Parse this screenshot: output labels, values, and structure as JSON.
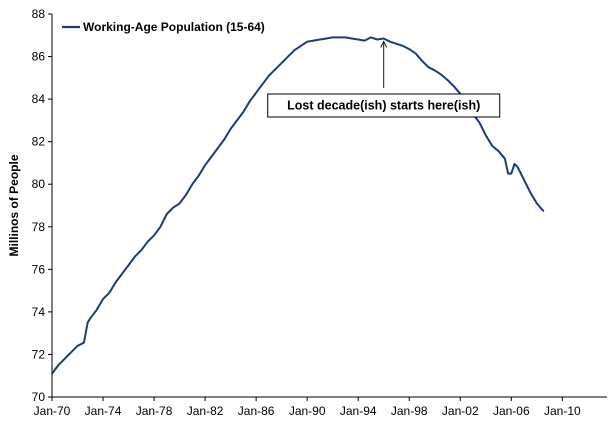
{
  "chart_data": {
    "type": "line",
    "title": "",
    "ylabel": "Millinos of People",
    "xlabel": "",
    "ylim": [
      70,
      88
    ],
    "yticks": [
      70,
      72,
      74,
      76,
      78,
      80,
      82,
      84,
      86,
      88
    ],
    "xlim": [
      1970.0,
      2013.5
    ],
    "xticks": [
      {
        "label": "Jan-70",
        "year": 1970
      },
      {
        "label": "Jan-74",
        "year": 1974
      },
      {
        "label": "Jan-78",
        "year": 1978
      },
      {
        "label": "Jan-82",
        "year": 1982
      },
      {
        "label": "Jan-86",
        "year": 1986
      },
      {
        "label": "Jan-90",
        "year": 1990
      },
      {
        "label": "Jan-94",
        "year": 1994
      },
      {
        "label": "Jan-98",
        "year": 1998
      },
      {
        "label": "Jan-02",
        "year": 2002
      },
      {
        "label": "Jan-06",
        "year": 2006
      },
      {
        "label": "Jan-10",
        "year": 2010
      }
    ],
    "grid": false,
    "legend_position": "top-left",
    "series": [
      {
        "name": "Working-Age Population (15-64)",
        "color": "#1f3a7a",
        "points": [
          [
            1970.0,
            71.1
          ],
          [
            1970.5,
            71.5
          ],
          [
            1971.0,
            71.8
          ],
          [
            1971.5,
            72.1
          ],
          [
            1972.0,
            72.4
          ],
          [
            1972.5,
            72.55
          ],
          [
            1972.8,
            73.5
          ],
          [
            1973.0,
            73.7
          ],
          [
            1973.5,
            74.1
          ],
          [
            1974.0,
            74.6
          ],
          [
            1974.5,
            74.9
          ],
          [
            1975.0,
            75.4
          ],
          [
            1975.5,
            75.8
          ],
          [
            1976.0,
            76.2
          ],
          [
            1976.5,
            76.6
          ],
          [
            1977.0,
            76.9
          ],
          [
            1977.5,
            77.3
          ],
          [
            1978.0,
            77.6
          ],
          [
            1978.5,
            78.0
          ],
          [
            1979.0,
            78.6
          ],
          [
            1979.5,
            78.9
          ],
          [
            1980.0,
            79.1
          ],
          [
            1980.5,
            79.5
          ],
          [
            1981.0,
            80.0
          ],
          [
            1981.5,
            80.4
          ],
          [
            1982.0,
            80.9
          ],
          [
            1982.5,
            81.3
          ],
          [
            1983.0,
            81.7
          ],
          [
            1983.5,
            82.1
          ],
          [
            1984.0,
            82.6
          ],
          [
            1984.5,
            83.0
          ],
          [
            1985.0,
            83.4
          ],
          [
            1985.5,
            83.9
          ],
          [
            1986.0,
            84.3
          ],
          [
            1986.5,
            84.7
          ],
          [
            1987.0,
            85.1
          ],
          [
            1987.5,
            85.4
          ],
          [
            1988.0,
            85.7
          ],
          [
            1988.5,
            86.0
          ],
          [
            1989.0,
            86.3
          ],
          [
            1989.5,
            86.5
          ],
          [
            1990.0,
            86.7
          ],
          [
            1990.5,
            86.75
          ],
          [
            1991.0,
            86.8
          ],
          [
            1991.5,
            86.85
          ],
          [
            1992.0,
            86.9
          ],
          [
            1992.5,
            86.9
          ],
          [
            1993.0,
            86.9
          ],
          [
            1993.5,
            86.85
          ],
          [
            1994.0,
            86.8
          ],
          [
            1994.5,
            86.75
          ],
          [
            1995.0,
            86.9
          ],
          [
            1995.5,
            86.8
          ],
          [
            1996.0,
            86.85
          ],
          [
            1996.5,
            86.7
          ],
          [
            1997.0,
            86.6
          ],
          [
            1997.5,
            86.5
          ],
          [
            1998.0,
            86.35
          ],
          [
            1998.5,
            86.15
          ],
          [
            1999.0,
            85.8
          ],
          [
            1999.5,
            85.5
          ],
          [
            2000.0,
            85.35
          ],
          [
            2000.5,
            85.15
          ],
          [
            2001.0,
            84.9
          ],
          [
            2001.5,
            84.6
          ],
          [
            2002.0,
            84.25
          ],
          [
            2002.5,
            83.9
          ],
          [
            2003.0,
            83.3
          ],
          [
            2003.5,
            82.9
          ],
          [
            2004.0,
            82.3
          ],
          [
            2004.5,
            81.8
          ],
          [
            2005.0,
            81.55
          ],
          [
            2005.5,
            81.2
          ],
          [
            2005.75,
            80.5
          ],
          [
            2006.0,
            80.5
          ],
          [
            2006.25,
            80.95
          ],
          [
            2006.5,
            80.8
          ],
          [
            2007.0,
            80.2
          ],
          [
            2007.5,
            79.6
          ],
          [
            2008.0,
            79.1
          ],
          [
            2008.5,
            78.75
          ]
        ]
      }
    ],
    "annotation": {
      "text": "Lost decade(ish) starts here(ish)",
      "target": [
        1996.0,
        86.85
      ],
      "label_anchor": [
        1996.0,
        83.7
      ]
    }
  }
}
